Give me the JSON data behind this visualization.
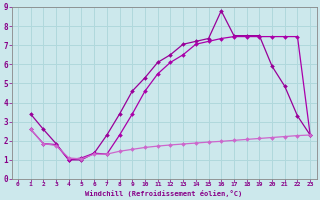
{
  "bg_color": "#cce8ec",
  "grid_color": "#b0d8dc",
  "line_color1": "#990099",
  "line_color2": "#aa00aa",
  "line_color3": "#cc66cc",
  "xlabel": "Windchill (Refroidissement éolien,°C)",
  "xlabel_color": "#880088",
  "tick_color": "#880088",
  "spine_color": "#888888",
  "xlim": [
    -0.5,
    23.5
  ],
  "ylim": [
    0,
    9
  ],
  "xticks": [
    0,
    1,
    2,
    3,
    4,
    5,
    6,
    7,
    8,
    9,
    10,
    11,
    12,
    13,
    14,
    15,
    16,
    17,
    18,
    19,
    20,
    21,
    22,
    23
  ],
  "yticks": [
    0,
    1,
    2,
    3,
    4,
    5,
    6,
    7,
    8,
    9
  ],
  "series1_x": [
    1,
    2,
    3,
    4,
    5,
    6,
    7,
    8,
    9,
    10,
    11,
    12,
    13,
    14,
    15,
    16,
    17,
    18,
    19,
    20,
    21,
    22,
    23
  ],
  "series1_y": [
    3.4,
    2.6,
    1.85,
    1.0,
    1.0,
    1.35,
    2.3,
    3.4,
    4.6,
    5.3,
    6.1,
    6.5,
    7.05,
    7.2,
    7.35,
    8.8,
    7.5,
    7.5,
    7.5,
    5.9,
    4.85,
    3.3,
    2.3
  ],
  "series2_x": [
    1,
    2,
    3,
    4,
    5,
    6,
    7,
    8,
    9,
    10,
    11,
    12,
    13,
    14,
    15,
    16,
    17,
    18,
    19,
    20,
    21,
    22,
    23
  ],
  "series2_y": [
    2.6,
    1.85,
    1.8,
    1.0,
    1.1,
    1.35,
    1.3,
    2.3,
    3.4,
    4.6,
    5.5,
    6.1,
    6.5,
    7.05,
    7.2,
    7.35,
    7.45,
    7.45,
    7.45,
    7.45,
    7.45,
    7.45,
    2.3
  ],
  "series3_x": [
    1,
    2,
    3,
    4,
    5,
    6,
    7,
    8,
    9,
    10,
    11,
    12,
    13,
    14,
    15,
    16,
    17,
    18,
    19,
    20,
    21,
    22,
    23
  ],
  "series3_y": [
    2.6,
    1.85,
    1.75,
    1.1,
    1.05,
    1.3,
    1.3,
    1.45,
    1.55,
    1.65,
    1.72,
    1.78,
    1.83,
    1.88,
    1.93,
    1.97,
    2.02,
    2.07,
    2.12,
    2.17,
    2.22,
    2.27,
    2.3
  ]
}
